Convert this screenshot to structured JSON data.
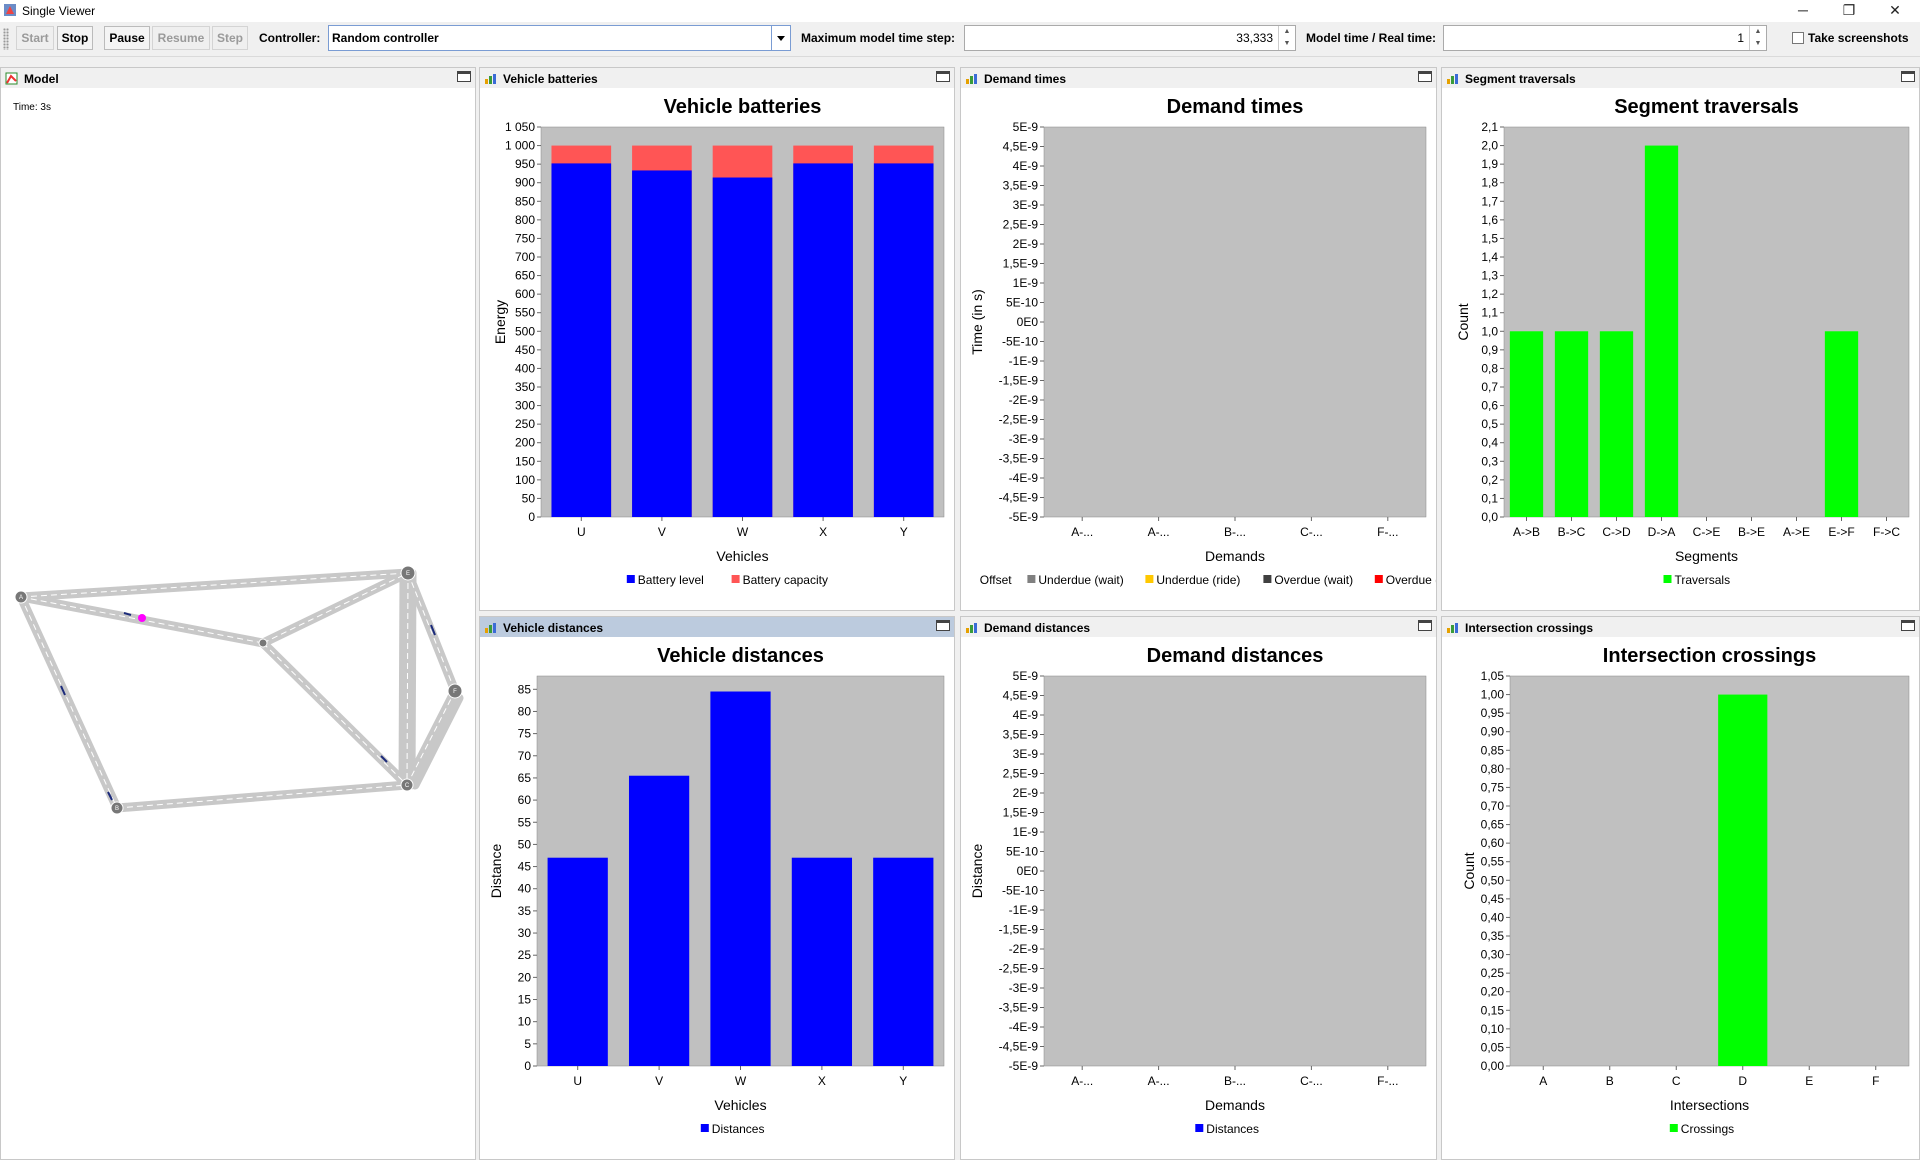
{
  "window": {
    "title": "Single Viewer",
    "minimize": "─",
    "restore": "❐",
    "close": "✕"
  },
  "toolbar": {
    "start": "Start",
    "stop": "Stop",
    "pause": "Pause",
    "resume": "Resume",
    "step": "Step",
    "controller_label": "Controller:",
    "controller_value": "Random controller",
    "max_step_label": "Maximum model time step:",
    "max_step_value": "33,333",
    "ratio_label": "Model time / Real time:",
    "ratio_value": "1",
    "screenshots_label": "Take screenshots"
  },
  "model": {
    "title": "Model",
    "time": "Time: 3s",
    "nodes": [
      "A",
      "B",
      "C",
      "D",
      "E",
      "F"
    ]
  },
  "panels": {
    "vehicle_batteries": "Vehicle batteries",
    "demand_times": "Demand times",
    "segment_traversals": "Segment traversals",
    "vehicle_distances": "Vehicle distances",
    "demand_distances": "Demand distances",
    "intersection_crossings": "Intersection crossings"
  },
  "chart_data": [
    {
      "id": "vehicle_batteries",
      "type": "bar",
      "title": "Vehicle batteries",
      "xlabel": "Vehicles",
      "ylabel": "Energy",
      "categories": [
        "U",
        "V",
        "W",
        "X",
        "Y"
      ],
      "series": [
        {
          "name": "Battery level",
          "values": [
            952,
            933,
            914,
            952,
            952
          ],
          "color": "#0000ff"
        },
        {
          "name": "Battery capacity",
          "values": [
            1000,
            1000,
            1000,
            1000,
            1000
          ],
          "color": "#ff5555"
        }
      ],
      "stacked_overlay": true,
      "ylim": [
        0,
        1050
      ],
      "ytick_step": 50,
      "yticks": [
        "0",
        "50",
        "100",
        "150",
        "200",
        "250",
        "300",
        "350",
        "400",
        "450",
        "500",
        "550",
        "600",
        "650",
        "700",
        "750",
        "800",
        "850",
        "900",
        "950",
        "1 000",
        "1 050"
      ],
      "legend": [
        {
          "label": "Battery level",
          "color": "#0000ff"
        },
        {
          "label": "Battery capacity",
          "color": "#ff5555"
        }
      ],
      "legend_position": "bottom",
      "grid": true
    },
    {
      "id": "demand_times",
      "type": "bar",
      "title": "Demand times",
      "xlabel": "Demands",
      "ylabel": "Time (in s)",
      "categories": [
        "A-...",
        "A-...",
        "B-...",
        "C-...",
        "F-..."
      ],
      "series": [],
      "ylim": [
        -5e-09,
        5e-09
      ],
      "yticks": [
        "-5E-9",
        "-4,5E-9",
        "-4E-9",
        "-3,5E-9",
        "-3E-9",
        "-2,5E-9",
        "-2E-9",
        "-1,5E-9",
        "-1E-9",
        "-5E-10",
        "0E0",
        "5E-10",
        "1E-9",
        "1,5E-9",
        "2E-9",
        "2,5E-9",
        "3E-9",
        "3,5E-9",
        "4E-9",
        "4,5E-9",
        "5E-9"
      ],
      "legend": [
        {
          "label": "Offset",
          "color": ""
        },
        {
          "label": "Underdue (wait)",
          "color": "#808080"
        },
        {
          "label": "Underdue (ride)",
          "color": "#ffc800"
        },
        {
          "label": "Overdue (wait)",
          "color": "#404040"
        },
        {
          "label": "Overdue (ride)",
          "color": "#ff0000"
        }
      ],
      "legend_position": "bottom",
      "grid": true
    },
    {
      "id": "segment_traversals",
      "type": "bar",
      "title": "Segment traversals",
      "xlabel": "Segments",
      "ylabel": "Count",
      "categories": [
        "A->B",
        "B->C",
        "C->D",
        "D->A",
        "C->E",
        "B->E",
        "A->E",
        "E->F",
        "F->C"
      ],
      "series": [
        {
          "name": "Traversals",
          "values": [
            1,
            1,
            1,
            2,
            0,
            0,
            0,
            1,
            0
          ],
          "color": "#00ff00"
        }
      ],
      "ylim": [
        0,
        2.1
      ],
      "yticks": [
        "0,0",
        "0,1",
        "0,2",
        "0,3",
        "0,4",
        "0,5",
        "0,6",
        "0,7",
        "0,8",
        "0,9",
        "1,0",
        "1,1",
        "1,2",
        "1,3",
        "1,4",
        "1,5",
        "1,6",
        "1,7",
        "1,8",
        "1,9",
        "2,0",
        "2,1"
      ],
      "legend": [
        {
          "label": "Traversals",
          "color": "#00ff00"
        }
      ],
      "legend_position": "bottom",
      "grid": true
    },
    {
      "id": "vehicle_distances",
      "type": "bar",
      "title": "Vehicle distances",
      "xlabel": "Vehicles",
      "ylabel": "Distance",
      "categories": [
        "U",
        "V",
        "W",
        "X",
        "Y"
      ],
      "series": [
        {
          "name": "Distances",
          "values": [
            47,
            65.5,
            84.5,
            47,
            47
          ],
          "color": "#0000ff"
        }
      ],
      "ylim": [
        0,
        88
      ],
      "yticks": [
        "0",
        "5",
        "10",
        "15",
        "20",
        "25",
        "30",
        "35",
        "40",
        "45",
        "50",
        "55",
        "60",
        "65",
        "70",
        "75",
        "80",
        "85"
      ],
      "legend": [
        {
          "label": "Distances",
          "color": "#0000ff"
        }
      ],
      "legend_position": "bottom",
      "grid": true
    },
    {
      "id": "demand_distances",
      "type": "bar",
      "title": "Demand distances",
      "xlabel": "Demands",
      "ylabel": "Distance",
      "categories": [
        "A-...",
        "A-...",
        "B-...",
        "C-...",
        "F-..."
      ],
      "series": [],
      "ylim": [
        -5e-09,
        5e-09
      ],
      "yticks": [
        "-5E-9",
        "-4,5E-9",
        "-4E-9",
        "-3,5E-9",
        "-3E-9",
        "-2,5E-9",
        "-2E-9",
        "-1,5E-9",
        "-1E-9",
        "-5E-10",
        "0E0",
        "5E-10",
        "1E-9",
        "1,5E-9",
        "2E-9",
        "2,5E-9",
        "3E-9",
        "3,5E-9",
        "4E-9",
        "4,5E-9",
        "5E-9"
      ],
      "legend": [
        {
          "label": "Distances",
          "color": "#0000ff"
        }
      ],
      "legend_position": "bottom",
      "grid": true
    },
    {
      "id": "intersection_crossings",
      "type": "bar",
      "title": "Intersection crossings",
      "xlabel": "Intersections",
      "ylabel": "Count",
      "categories": [
        "A",
        "B",
        "C",
        "D",
        "E",
        "F"
      ],
      "series": [
        {
          "name": "Crossings",
          "values": [
            0,
            0,
            0,
            1,
            0,
            0
          ],
          "color": "#00ff00"
        }
      ],
      "ylim": [
        0,
        1.05
      ],
      "yticks": [
        "0,00",
        "0,05",
        "0,10",
        "0,15",
        "0,20",
        "0,25",
        "0,30",
        "0,35",
        "0,40",
        "0,45",
        "0,50",
        "0,55",
        "0,60",
        "0,65",
        "0,70",
        "0,75",
        "0,80",
        "0,85",
        "0,90",
        "0,95",
        "1,00",
        "1,05"
      ],
      "legend": [
        {
          "label": "Crossings",
          "color": "#00ff00"
        }
      ],
      "legend_position": "bottom",
      "grid": true
    }
  ]
}
